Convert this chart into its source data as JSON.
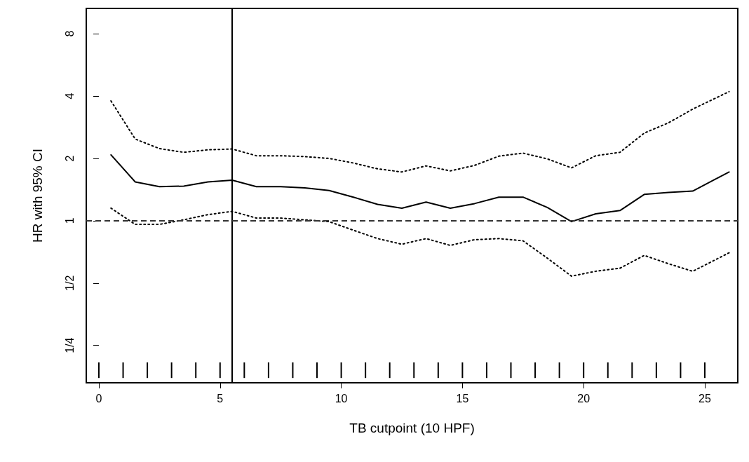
{
  "chart_data": {
    "type": "line",
    "xlabel": "TB cutpoint (10 HPF)",
    "ylabel": "HR with 95% CI",
    "x": [
      0.5,
      1.5,
      2.5,
      3.5,
      4.5,
      5.5,
      6.5,
      7.5,
      8.5,
      9.5,
      10.5,
      11.5,
      12.5,
      13.5,
      14.5,
      15.5,
      16.5,
      17.5,
      18.5,
      19.5,
      20.5,
      21.5,
      22.5,
      23.5,
      24.5,
      26
    ],
    "series": [
      {
        "color": "#000000",
        "line_style": "solid",
        "values": [
          2.08,
          1.54,
          1.46,
          1.47,
          1.54,
          1.57,
          1.46,
          1.46,
          1.44,
          1.4,
          1.3,
          1.2,
          1.15,
          1.23,
          1.15,
          1.21,
          1.3,
          1.3,
          1.16,
          0.99,
          1.08,
          1.12,
          1.34,
          1.37,
          1.39,
          1.72
        ]
      },
      {
        "color": "#000000",
        "line_style": "dotted",
        "values": [
          3.79,
          2.48,
          2.23,
          2.14,
          2.2,
          2.22,
          2.06,
          2.06,
          2.04,
          2.0,
          1.9,
          1.78,
          1.72,
          1.84,
          1.74,
          1.85,
          2.05,
          2.12,
          1.99,
          1.8,
          2.06,
          2.14,
          2.65,
          2.97,
          3.46,
          4.2
        ]
      },
      {
        "color": "#000000",
        "line_style": "dotted",
        "values": [
          1.15,
          0.96,
          0.96,
          1.01,
          1.07,
          1.11,
          1.03,
          1.03,
          1.01,
          0.99,
          0.9,
          0.82,
          0.77,
          0.82,
          0.76,
          0.81,
          0.82,
          0.8,
          0.66,
          0.54,
          0.57,
          0.59,
          0.68,
          0.62,
          0.57,
          0.7
        ]
      },
      {
        "type": "bar",
        "color": "#000000",
        "x": [
          0,
          1,
          2,
          3,
          4,
          5,
          6,
          7,
          8,
          9,
          10,
          11,
          12,
          13,
          14,
          15,
          16,
          17,
          18,
          19,
          20,
          21,
          22,
          23,
          24,
          25
        ],
        "base": [
          0.174,
          0.174,
          0.174,
          0.174,
          0.174,
          0.174,
          0.174,
          0.174,
          0.174,
          0.174,
          0.174,
          0.174,
          0.174,
          0.174,
          0.174,
          0.174,
          0.174,
          0.174,
          0.174,
          0.174,
          0.174,
          0.174,
          0.174,
          0.174,
          0.174,
          0.174
        ],
        "values": [
          0.033,
          0.033,
          0.033,
          0.033,
          0.033,
          0.033,
          0.033,
          0.033,
          0.033,
          0.033,
          0.033,
          0.033,
          0.033,
          0.033,
          0.033,
          0.033,
          0.033,
          0.033,
          0.033,
          0.033,
          0.033,
          0.033,
          0.033,
          0.033,
          0.033,
          0.033
        ]
      }
    ],
    "log": "y",
    "xlim": [
      -0.52,
      26.36
    ],
    "xticks": [
      0,
      5,
      10,
      15,
      20,
      25
    ],
    "ylim": [
      0.165,
      10.6
    ],
    "yticks": [
      {
        "value": 0.25,
        "label": "1/4"
      },
      {
        "value": 0.5,
        "label": "1/2"
      },
      1,
      2,
      4,
      8
    ],
    "ref_lines": [
      {
        "axis": "x",
        "value": 5.5,
        "color": "#000000",
        "line_style": "solid"
      },
      {
        "axis": "y",
        "value": 1,
        "color": "#333333",
        "line_style": "dashed"
      }
    ],
    "grid": false
  }
}
